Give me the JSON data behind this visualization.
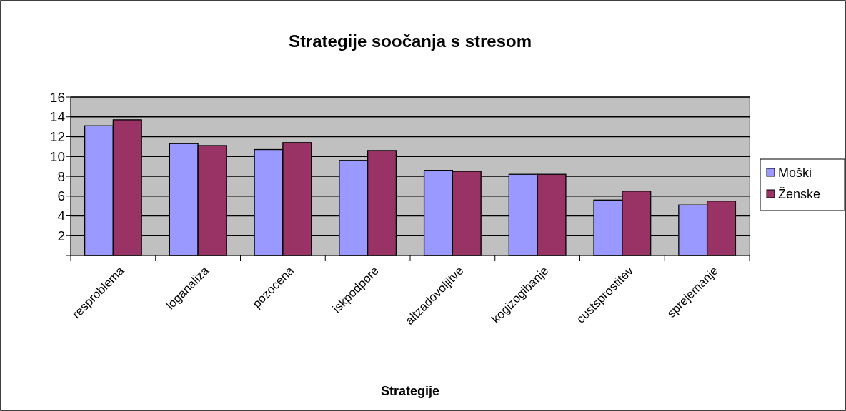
{
  "chart_data": {
    "type": "bar",
    "title": "Strategije soočanja s stresom",
    "xlabel": "Strategije",
    "categories": [
      "resproblema",
      "loganaliza",
      "pozocena",
      "iskpodpore",
      "altzadovoljitve",
      "kogizogibanje",
      "custsprostitev",
      "sprejemanje"
    ],
    "series": [
      {
        "name": "Moški",
        "color": "#9999ff",
        "values": [
          13.1,
          11.3,
          10.7,
          9.6,
          8.6,
          8.2,
          5.6,
          5.1
        ]
      },
      {
        "name": "Ženske",
        "color": "#993366",
        "values": [
          13.7,
          11.1,
          11.4,
          10.6,
          8.5,
          8.2,
          6.5,
          5.5
        ]
      }
    ],
    "ylim": [
      0,
      16
    ],
    "yticks": [
      {
        "value": 0,
        "label": null
      },
      2,
      4,
      6,
      8,
      10,
      12,
      14,
      16
    ],
    "grid": "y",
    "legend": "right"
  }
}
